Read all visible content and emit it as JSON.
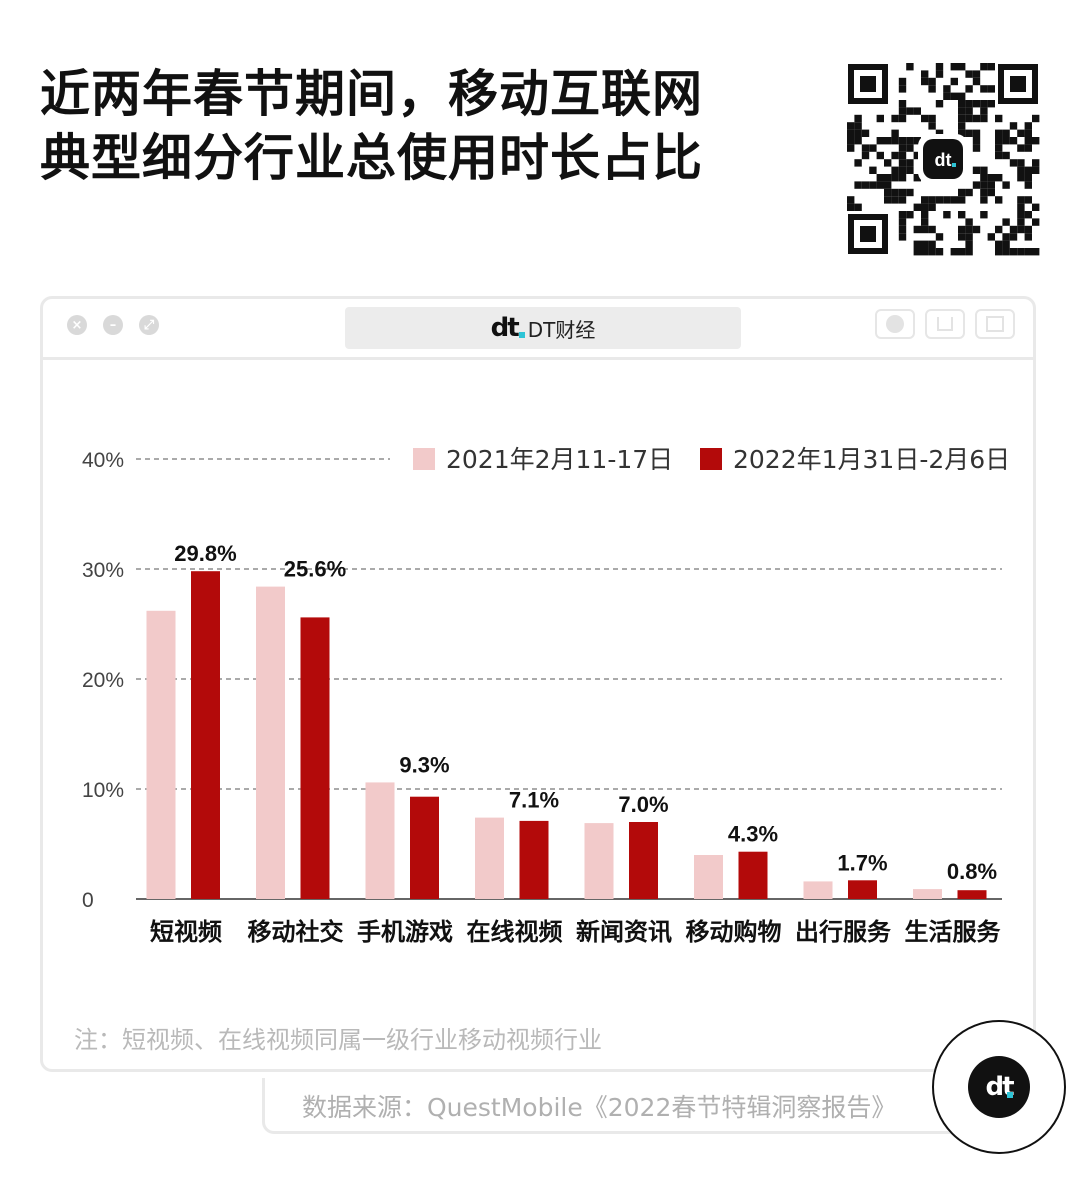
{
  "title_line1": "近两年春节期间，移动互联网",
  "title_line2": "典型细分行业总使用时长占比",
  "window_tab_title": "DT财经",
  "note": "注：短视频、在线视频同属一级行业移动视频行业",
  "source": "数据来源：QuestMobile《2022春节特辑洞察报告》",
  "colors": {
    "series_2021": "#f2caca",
    "series_2022": "#b30a0a",
    "grid": "#555555"
  },
  "icons": [
    "qr-code-icon",
    "dt-logo-icon",
    "close-icon",
    "minimize-icon",
    "maximize-icon"
  ],
  "chart_data": {
    "type": "bar",
    "categories": [
      "短视频",
      "移动社交",
      "手机游戏",
      "在线视频",
      "新闻资讯",
      "移动购物",
      "出行服务",
      "生活服务"
    ],
    "series": [
      {
        "name": "2021年2月11-17日",
        "values": [
          26.2,
          28.4,
          10.6,
          7.4,
          6.9,
          4.0,
          1.6,
          0.9
        ],
        "color": "#f2caca"
      },
      {
        "name": "2022年1月31日-2月6日",
        "values": [
          29.8,
          25.6,
          9.3,
          7.1,
          7.0,
          4.3,
          1.7,
          0.8
        ],
        "color": "#b30a0a",
        "labels": [
          "29.8%",
          "25.6%",
          "9.3%",
          "7.1%",
          "7.0%",
          "4.3%",
          "1.7%",
          "0.8%"
        ]
      }
    ],
    "yticks": [
      "0",
      "10%",
      "20%",
      "30%",
      "40%"
    ],
    "ytick_values": [
      0,
      10,
      20,
      30,
      40
    ],
    "ylim": [
      0,
      40
    ],
    "legend": "top-right",
    "grid": true
  }
}
